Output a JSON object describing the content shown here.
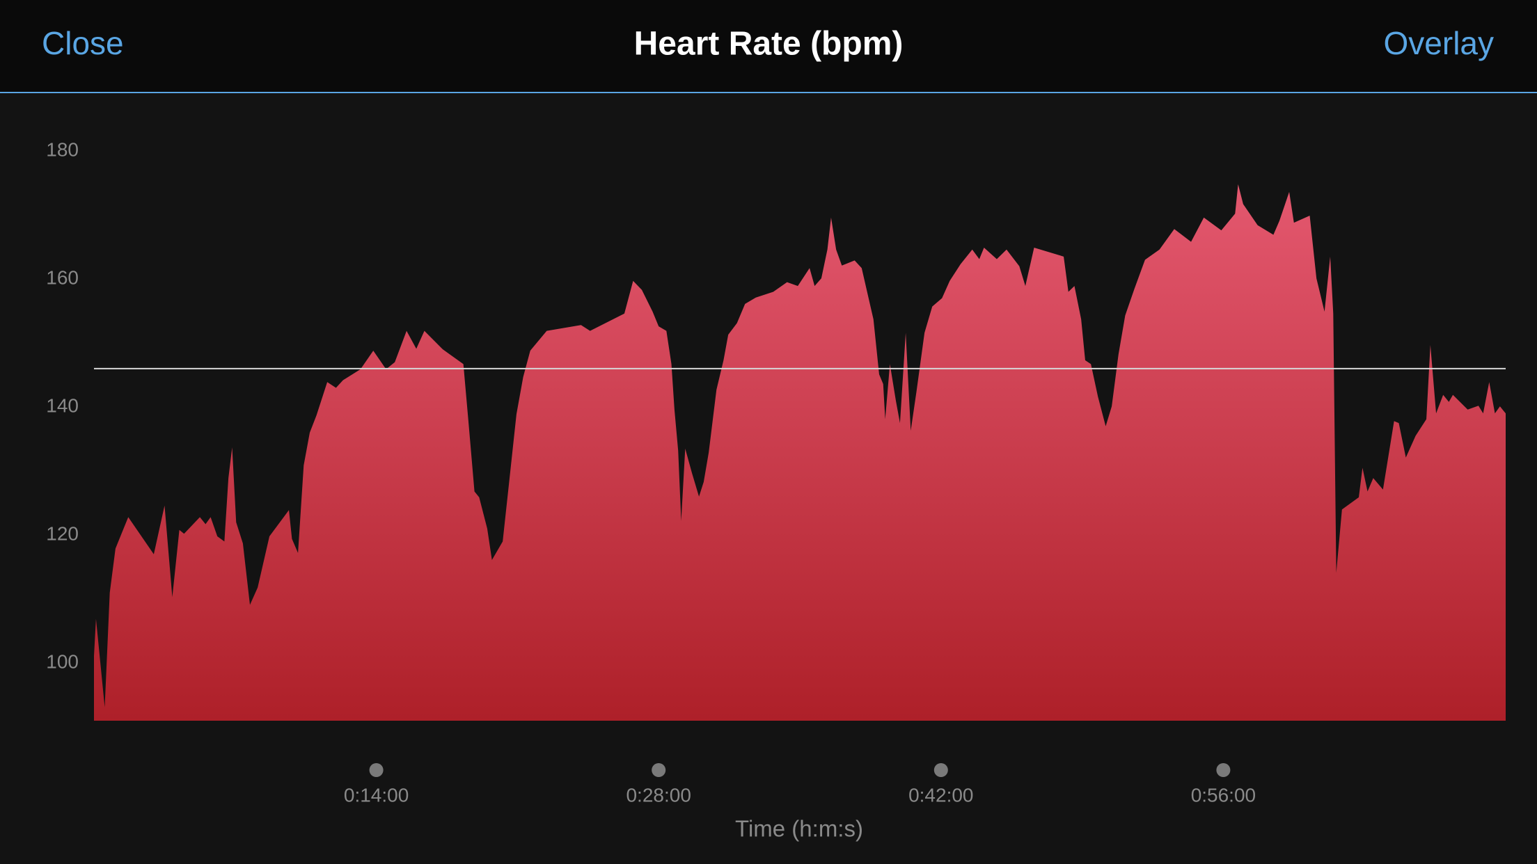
{
  "header": {
    "left_button": "Close",
    "title": "Heart Rate (bpm)",
    "right_button": "Overlay"
  },
  "chart_data": {
    "type": "area",
    "x_label": "Time (h:m:s)",
    "x": [
      0,
      6,
      32,
      47,
      64,
      102,
      178,
      210,
      233,
      254,
      268,
      315,
      332,
      347,
      367,
      388,
      400,
      411,
      423,
      443,
      464,
      487,
      522,
      580,
      589,
      607,
      624,
      642,
      662,
      694,
      720,
      741,
      793,
      831,
      869,
      895,
      930,
      959,
      983,
      1038,
      1099,
      1114,
      1132,
      1146,
      1170,
      1184,
      1216,
      1234,
      1257,
      1277,
      1298,
      1347,
      1449,
      1476,
      1578,
      1604,
      1630,
      1662,
      1680,
      1703,
      1718,
      1727,
      1738,
      1747,
      1759,
      1779,
      1800,
      1814,
      1829,
      1852,
      1873,
      1887,
      1913,
      1937,
      1969,
      2021,
      2062,
      2094,
      2129,
      2144,
      2164,
      2182,
      2193,
      2208,
      2225,
      2263,
      2284,
      2319,
      2336,
      2348,
      2354,
      2368,
      2386,
      2398,
      2415,
      2430,
      2447,
      2471,
      2494,
      2523,
      2546,
      2578,
      2613,
      2634,
      2648,
      2686,
      2715,
      2753,
      2771,
      2797,
      2885,
      2899,
      2917,
      2937,
      2949,
      2966,
      2987,
      3010,
      3028,
      3048,
      3068,
      3095,
      3127,
      3170,
      3214,
      3264,
      3302,
      3354,
      3395,
      3404,
      3419,
      3462,
      3509,
      3527,
      3556,
      3570,
      3617,
      3637,
      3661,
      3678,
      3687,
      3696,
      3713,
      3763,
      3774,
      3789,
      3806,
      3835,
      3868,
      3882,
      3903,
      3932,
      3964,
      3976,
      3993,
      4014,
      4031,
      4043,
      4087,
      4119,
      4133,
      4151,
      4168,
      4183,
      4200
    ],
    "values": [
      101.1,
      106.9,
      93.1,
      111.0,
      117.9,
      122.8,
      117.0,
      124.6,
      110.3,
      120.8,
      120.2,
      122.8,
      121.7,
      122.8,
      119.8,
      119.0,
      128.9,
      133.7,
      122.0,
      118.7,
      109.1,
      111.8,
      119.8,
      123.9,
      119.4,
      117.2,
      130.9,
      136.0,
      138.7,
      143.9,
      143.0,
      144.2,
      145.9,
      148.8,
      145.9,
      147.0,
      151.9,
      149.1,
      151.9,
      149.0,
      146.7,
      137.8,
      126.8,
      125.9,
      121.0,
      116.1,
      119.0,
      127.7,
      138.9,
      144.7,
      148.8,
      151.9,
      152.8,
      151.9,
      154.6,
      159.7,
      158.3,
      154.9,
      152.6,
      151.9,
      146.7,
      139.6,
      133.2,
      122.2,
      133.5,
      129.7,
      126.0,
      128.3,
      132.9,
      142.7,
      147.3,
      151.3,
      153.1,
      156.1,
      157.1,
      158.0,
      159.5,
      158.9,
      161.7,
      158.9,
      160.1,
      164.6,
      169.6,
      164.6,
      162.1,
      162.9,
      161.7,
      153.7,
      145.1,
      143.6,
      138.1,
      146.7,
      140.9,
      137.5,
      151.6,
      136.3,
      142.4,
      151.6,
      155.7,
      157.0,
      159.7,
      162.3,
      164.6,
      163.1,
      164.9,
      163.1,
      164.6,
      162.0,
      158.9,
      164.9,
      163.5,
      158.0,
      158.9,
      153.7,
      147.3,
      146.7,
      141.6,
      137.0,
      140.1,
      148.2,
      154.3,
      158.4,
      163.0,
      164.6,
      167.8,
      165.8,
      169.6,
      167.6,
      170.2,
      174.8,
      171.7,
      168.4,
      166.9,
      169.1,
      173.6,
      168.8,
      169.9,
      160.1,
      154.9,
      163.5,
      154.6,
      114.1,
      124.0,
      125.9,
      130.5,
      126.8,
      128.9,
      127.1,
      137.8,
      137.5,
      132.1,
      135.5,
      138.1,
      149.7,
      139.0,
      141.9,
      140.8,
      141.9,
      139.6,
      140.2,
      139.0,
      143.9,
      139.0,
      140.1,
      139.0
    ],
    "color_top": "#e4586f",
    "color_bottom": "#ae2029",
    "reference_line": 146,
    "xlim": [
      0,
      4200
    ],
    "xticks": [
      {
        "value": 840,
        "label": "0:14:00"
      },
      {
        "value": 1680,
        "label": "0:28:00"
      },
      {
        "value": 2520,
        "label": "0:42:00"
      },
      {
        "value": 3360,
        "label": "0:56:00"
      }
    ],
    "ylim": [
      91,
      180
    ],
    "yticks": [
      100,
      120,
      140,
      160,
      180
    ],
    "grid": false
  }
}
